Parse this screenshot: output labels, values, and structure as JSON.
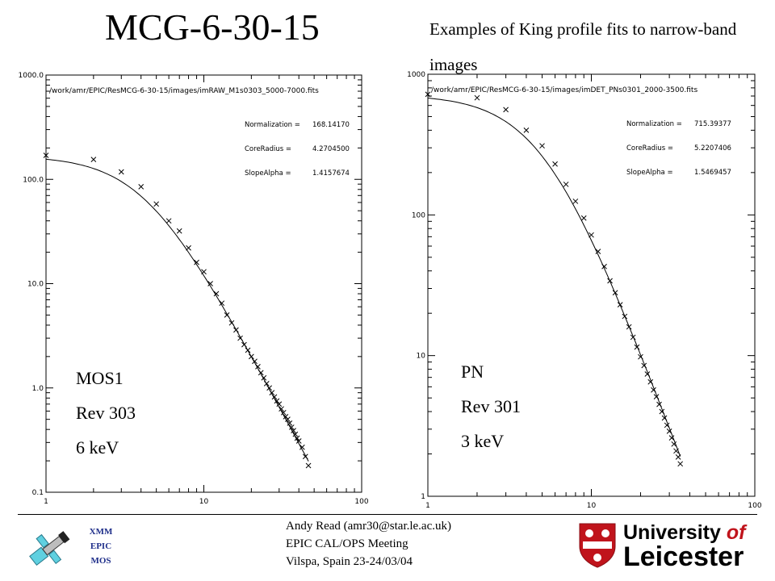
{
  "header": {
    "title": "MCG-6-30-15",
    "subtitle": "Examples of King profile fits to narrow-band images"
  },
  "chart_data": [
    {
      "type": "scatter",
      "file_label": "/work/amr/EPIC/ResMCG-6-30-15/images/imRAW_M1s0303_5000-7000.fits",
      "params": [
        {
          "name": "Normalization",
          "value": "168.14170"
        },
        {
          "name": "CoreRadius",
          "value": "4.2704500"
        },
        {
          "name": "SlopeAlpha",
          "value": "1.4157674"
        }
      ],
      "xscale": "log",
      "yscale": "log",
      "xlim": [
        1,
        100
      ],
      "ylim": [
        0.1,
        1000
      ],
      "xticks": [
        "1",
        "10",
        "100"
      ],
      "yticks": [
        "0.1",
        "1.0",
        "10.0",
        "100.0",
        "1000.0"
      ],
      "fit": {
        "norm": 168.1417,
        "core": 4.27045,
        "alpha": 1.4157674
      },
      "annotation": [
        "MOS1",
        "Rev 303",
        "6 keV"
      ],
      "points": [
        [
          1,
          170
        ],
        [
          2,
          155
        ],
        [
          3,
          118
        ],
        [
          4,
          85
        ],
        [
          5,
          58
        ],
        [
          6,
          40
        ],
        [
          7,
          32
        ],
        [
          8,
          22
        ],
        [
          9,
          16
        ],
        [
          10,
          13
        ],
        [
          11,
          10
        ],
        [
          12,
          8
        ],
        [
          13,
          6.5
        ],
        [
          14,
          5
        ],
        [
          15,
          4.2
        ],
        [
          16,
          3.6
        ],
        [
          17,
          3
        ],
        [
          18,
          2.6
        ],
        [
          19,
          2.3
        ],
        [
          20,
          2
        ],
        [
          21,
          1.8
        ],
        [
          22,
          1.6
        ],
        [
          23,
          1.4
        ],
        [
          24,
          1.25
        ],
        [
          25,
          1.1
        ],
        [
          26,
          1.0
        ],
        [
          27,
          0.9
        ],
        [
          28,
          0.82
        ],
        [
          29,
          0.75
        ],
        [
          30,
          0.7
        ],
        [
          31,
          0.63
        ],
        [
          32,
          0.58
        ],
        [
          33,
          0.53
        ],
        [
          34,
          0.5
        ],
        [
          35,
          0.46
        ],
        [
          36,
          0.42
        ],
        [
          37,
          0.39
        ],
        [
          38,
          0.36
        ],
        [
          39,
          0.33
        ],
        [
          40,
          0.31
        ],
        [
          42,
          0.27
        ],
        [
          44,
          0.22
        ],
        [
          46,
          0.18
        ]
      ]
    },
    {
      "type": "scatter",
      "file_label": "/work/amr/EPIC/ResMCG-6-30-15/images/imDET_PNs0301_2000-3500.fits",
      "params": [
        {
          "name": "Normalization",
          "value": "715.39377"
        },
        {
          "name": "CoreRadius",
          "value": "5.2207406"
        },
        {
          "name": "SlopeAlpha",
          "value": "1.5469457"
        }
      ],
      "xscale": "log",
      "yscale": "log",
      "xlim": [
        1,
        100
      ],
      "ylim": [
        1,
        1000
      ],
      "xticks": [
        "1",
        "10",
        "100"
      ],
      "yticks": [
        "1",
        "10",
        "100",
        "1000"
      ],
      "fit": {
        "norm": 715.39377,
        "core": 5.2207406,
        "alpha": 1.5469457
      },
      "annotation": [
        "PN",
        "Rev 301",
        "3 keV"
      ],
      "points": [
        [
          1,
          720
        ],
        [
          2,
          680
        ],
        [
          3,
          560
        ],
        [
          4,
          400
        ],
        [
          5,
          310
        ],
        [
          6,
          230
        ],
        [
          7,
          165
        ],
        [
          8,
          125
        ],
        [
          9,
          95
        ],
        [
          10,
          72
        ],
        [
          11,
          55
        ],
        [
          12,
          43
        ],
        [
          13,
          34
        ],
        [
          14,
          28
        ],
        [
          15,
          23
        ],
        [
          16,
          19
        ],
        [
          17,
          16
        ],
        [
          18,
          13.5
        ],
        [
          19,
          11.5
        ],
        [
          20,
          9.8
        ],
        [
          21,
          8.5
        ],
        [
          22,
          7.4
        ],
        [
          23,
          6.5
        ],
        [
          24,
          5.7
        ],
        [
          25,
          5.1
        ],
        [
          26,
          4.5
        ],
        [
          27,
          4.0
        ],
        [
          28,
          3.6
        ],
        [
          29,
          3.2
        ],
        [
          30,
          2.9
        ],
        [
          31,
          2.6
        ],
        [
          32,
          2.35
        ],
        [
          33,
          2.1
        ],
        [
          34,
          1.9
        ],
        [
          35,
          1.7
        ]
      ]
    }
  ],
  "footer": {
    "author": "Andy Read (amr30@star.le.ac.uk)",
    "meeting": "EPIC CAL/OPS Meeting",
    "location": "Vilspa, Spain 23-24/03/04",
    "xmm_lines": [
      "XMM",
      "EPIC",
      "MOS"
    ],
    "university": {
      "line1": "University",
      "of": "of",
      "line2": "Leicester"
    }
  },
  "colors": {
    "curve": "#000000",
    "leicester_red": "#c0141c",
    "xmm_blue": "#1f2f8a"
  }
}
